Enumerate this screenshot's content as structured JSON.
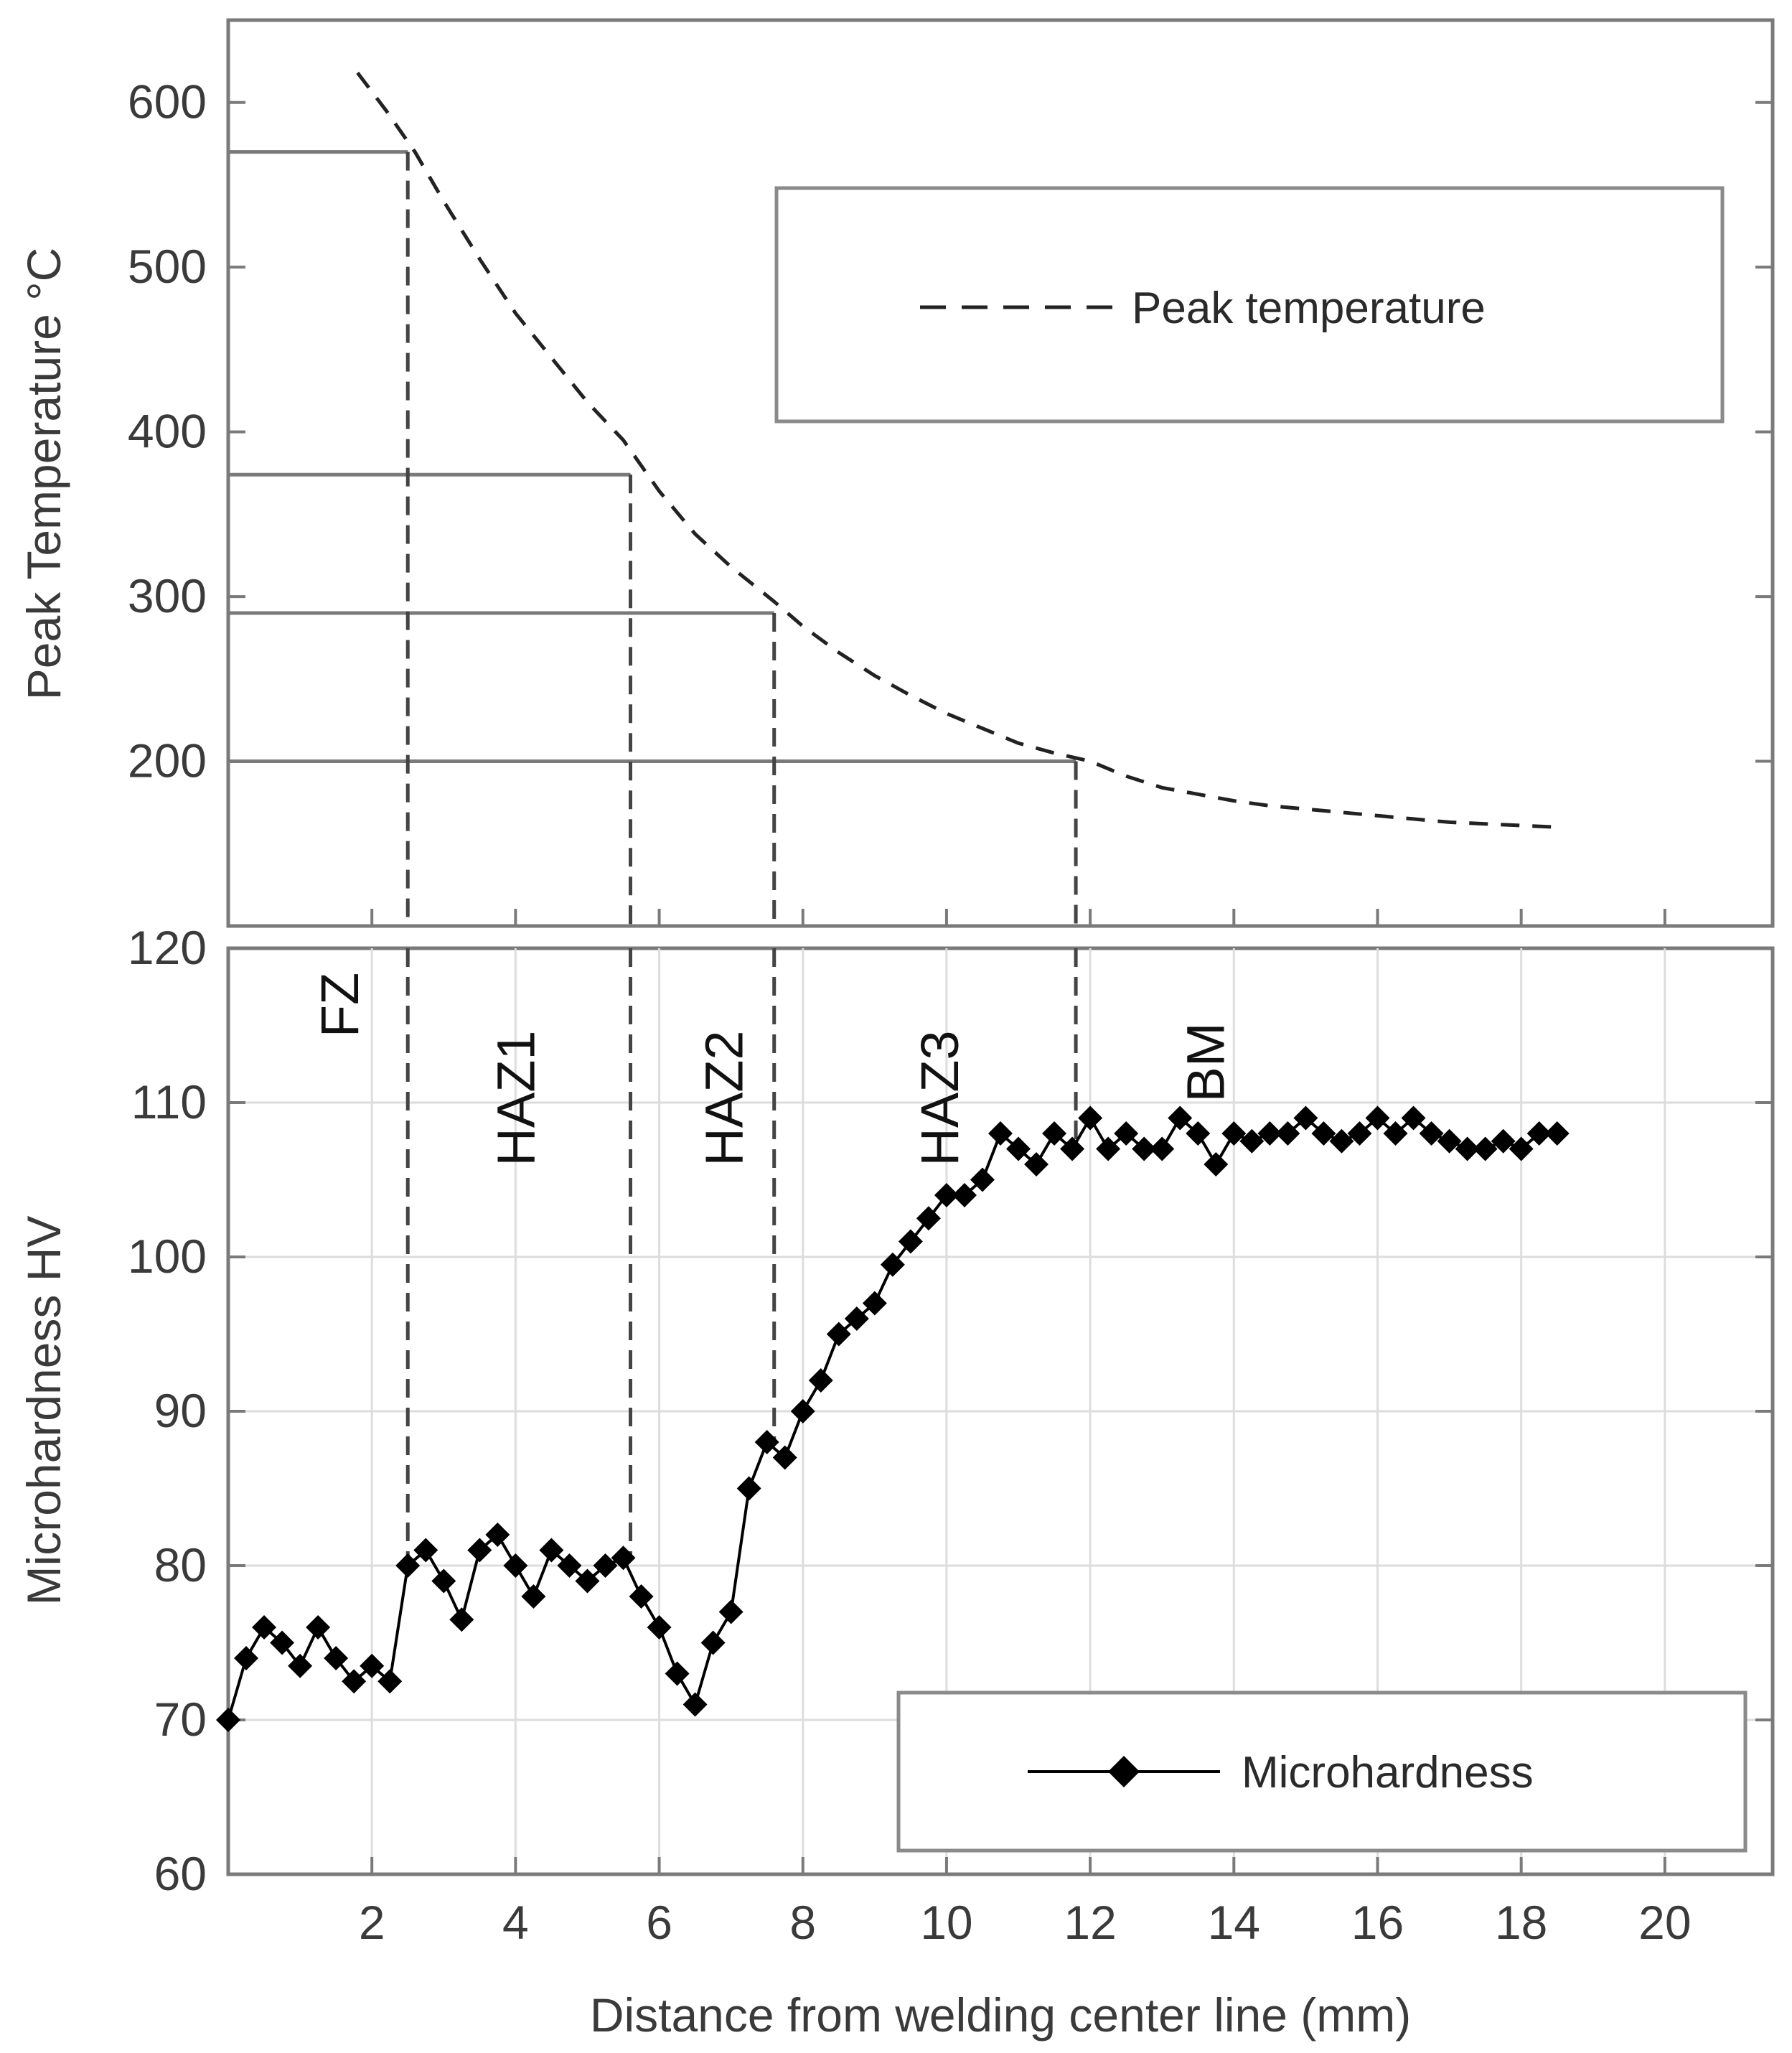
{
  "chart_data": [
    {
      "type": "line",
      "ylabel": "Peak Temperature °C",
      "ylim": [
        100,
        650
      ],
      "yticks": [
        200,
        300,
        400,
        500,
        600
      ],
      "grid": false,
      "legend_position": "top-right",
      "legend": [
        "Peak temperature"
      ],
      "series": [
        {
          "name": "Peak temperature",
          "style": "dashed",
          "x": [
            1.8,
            2.2,
            2.6,
            3.0,
            3.5,
            4.0,
            4.5,
            5.0,
            5.5,
            6.0,
            6.5,
            7.0,
            7.6,
            8.0,
            8.5,
            9.0,
            9.5,
            10.0,
            10.5,
            11.0,
            11.5,
            12.0,
            12.5,
            13.0,
            13.5,
            14.0,
            14.5,
            15.0,
            15.5,
            16.0,
            16.5,
            17.0,
            17.5,
            18.0,
            18.5
          ],
          "y": [
            618,
            595,
            570,
            540,
            505,
            472,
            445,
            418,
            395,
            364,
            338,
            318,
            297,
            282,
            266,
            252,
            240,
            229,
            220,
            211,
            205,
            200,
            191,
            184,
            180,
            176,
            173,
            171,
            169,
            167,
            165,
            163,
            162,
            161,
            160
          ]
        }
      ],
      "reference_lines": [
        {
          "x": 2.5,
          "y": 570
        },
        {
          "x": 5.6,
          "y": 374
        },
        {
          "x": 7.6,
          "y": 290
        },
        {
          "x": 11.8,
          "y": 200
        }
      ]
    },
    {
      "type": "line",
      "xlabel": "Distance from welding center line (mm)",
      "ylabel": "Microhardness HV",
      "xlim": [
        0,
        21.5
      ],
      "ylim": [
        60,
        120
      ],
      "xticks": [
        2,
        4,
        6,
        8,
        10,
        12,
        14,
        16,
        18,
        20
      ],
      "yticks": [
        60,
        70,
        80,
        90,
        100,
        110,
        120
      ],
      "grid": true,
      "legend_position": "bottom-right",
      "legend": [
        "Microhardness"
      ],
      "zone_labels": [
        "FZ",
        "HAZ1",
        "HAZ2",
        "HAZ3",
        "BM"
      ],
      "zone_boundaries": [
        2.5,
        5.6,
        7.6,
        11.8
      ],
      "series": [
        {
          "name": "Microhardness",
          "marker": "diamond",
          "x": [
            0.0,
            0.25,
            0.5,
            0.75,
            1.0,
            1.25,
            1.5,
            1.75,
            2.0,
            2.25,
            2.5,
            2.75,
            3.0,
            3.25,
            3.5,
            3.75,
            4.0,
            4.25,
            4.5,
            4.75,
            5.0,
            5.25,
            5.5,
            5.75,
            6.0,
            6.25,
            6.5,
            6.75,
            7.0,
            7.25,
            7.5,
            7.75,
            8.0,
            8.25,
            8.5,
            8.75,
            9.0,
            9.25,
            9.5,
            9.75,
            10.0,
            10.25,
            10.5,
            10.75,
            11.0,
            11.25,
            11.5,
            11.75,
            12.0,
            12.25,
            12.5,
            12.75,
            13.0,
            13.25,
            13.5,
            13.75,
            14.0,
            14.25,
            14.5,
            14.75,
            15.0,
            15.25,
            15.5,
            15.75,
            16.0,
            16.25,
            16.5,
            16.75,
            17.0,
            17.25,
            17.5,
            17.75,
            18.0,
            18.25,
            18.5
          ],
          "y": [
            70,
            74,
            76,
            75,
            73.5,
            76,
            74,
            72.5,
            73.5,
            72.5,
            80,
            81,
            79,
            76.5,
            81,
            82,
            80,
            78,
            81,
            80,
            79,
            80,
            80.5,
            78,
            76,
            73,
            71,
            75,
            77,
            85,
            88,
            87,
            90,
            92,
            95,
            96,
            97,
            99.5,
            101,
            102.5,
            104,
            104,
            105,
            108,
            107,
            106,
            108,
            107,
            109,
            107,
            108,
            107,
            107,
            109,
            108,
            106,
            108,
            107.5,
            108,
            108,
            109,
            108,
            107.5,
            108,
            109,
            108,
            109,
            108,
            107.5,
            107,
            107,
            107.5,
            107,
            108,
            108
          ]
        }
      ]
    }
  ]
}
